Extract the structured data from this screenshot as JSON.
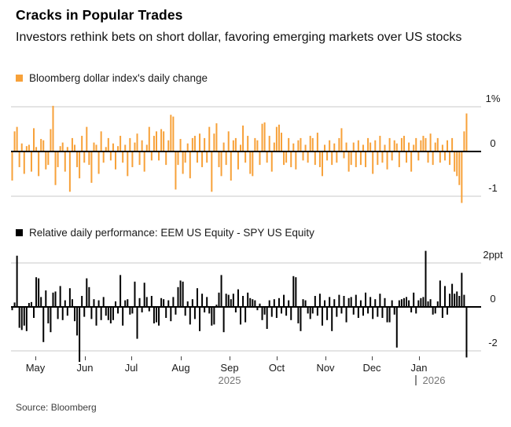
{
  "header": {
    "title": "Cracks in Popular Trades",
    "subtitle": "Investors rethink bets on short dollar, favoring emerging markets over US stocks"
  },
  "footer": {
    "source": "Source: Bloomberg"
  },
  "colors": {
    "dollar_bars": "#F7A139",
    "eem_spy_bars": "#000000",
    "gridline": "#DCDCDC",
    "zero_line": "#000000",
    "year_text": "#757575"
  },
  "axis": {
    "months": [
      {
        "label": "May",
        "x": 45
      },
      {
        "label": "Jun",
        "x": 108
      },
      {
        "label": "Jul",
        "x": 167
      },
      {
        "label": "Aug",
        "x": 230
      },
      {
        "label": "Sep",
        "x": 292
      },
      {
        "label": "Oct",
        "x": 352
      },
      {
        "label": "Nov",
        "x": 414
      },
      {
        "label": "Dec",
        "x": 473
      },
      {
        "label": "Jan",
        "x": 533
      }
    ],
    "years": [
      {
        "label": "2025",
        "x": 292,
        "divider": false
      },
      {
        "label": "2026",
        "x": 552,
        "divider": true
      }
    ]
  },
  "chart_data": [
    {
      "type": "bar",
      "name": "bloomberg-dollar-index-daily-change",
      "legend": "Bloomberg dollar index's daily change",
      "unit": "%",
      "color": "#F7A139",
      "y_ticks": [
        {
          "label": "1%",
          "value": 1
        },
        {
          "label": "0",
          "value": 0
        },
        {
          "label": "-1",
          "value": -1
        }
      ],
      "ylim": [
        -1.3,
        1.1
      ],
      "x_range": "May 2025 - Jan 2026, daily",
      "values": [
        -0.65,
        0.45,
        0.55,
        -0.35,
        0.18,
        -0.5,
        0.12,
        0.15,
        -0.45,
        0.52,
        0.1,
        -0.55,
        0.28,
        0.25,
        -0.4,
        -0.3,
        0.5,
        1.02,
        -0.75,
        -0.35,
        0.12,
        0.2,
        -0.45,
        0.1,
        -0.9,
        0.3,
        0.15,
        -0.35,
        -0.6,
        0.35,
        -0.25,
        0.55,
        -0.3,
        -0.7,
        0.2,
        0.15,
        -0.5,
        0.45,
        -0.25,
        0.1,
        0.3,
        -0.2,
        0.18,
        -0.4,
        0.12,
        0.35,
        -0.25,
        0.15,
        -0.55,
        0.3,
        -0.35,
        0.2,
        0.4,
        -0.3,
        0.25,
        -0.45,
        0.15,
        0.55,
        -0.2,
        0.35,
        0.45,
        -0.2,
        0.5,
        0.45,
        -0.3,
        0.25,
        0.82,
        0.78,
        -0.85,
        -0.3,
        0.28,
        -0.5,
        -0.25,
        0.18,
        -0.6,
        0.3,
        0.35,
        -0.25,
        0.4,
        -0.35,
        0.3,
        -0.25,
        0.55,
        -0.9,
        0.4,
        0.63,
        -0.35,
        -0.55,
        0.2,
        -0.3,
        0.45,
        -0.65,
        0.25,
        0.3,
        -0.4,
        0.15,
        0.58,
        -0.25,
        0.35,
        -0.5,
        -0.55,
        0.3,
        0.25,
        -0.3,
        0.62,
        0.65,
        -0.25,
        0.35,
        -0.45,
        0.2,
        0.55,
        0.6,
        0.42,
        -0.3,
        -0.25,
        0.3,
        -0.35,
        0.18,
        -0.4,
        0.25,
        0.3,
        -0.2,
        0.15,
        -0.25,
        0.35,
        0.3,
        -0.3,
        0.42,
        -0.35,
        -0.55,
        0.15,
        -0.2,
        0.25,
        -0.3,
        0.18,
        -0.25,
        0.3,
        0.52,
        -0.15,
        0.2,
        -0.45,
        -0.3,
        0.2,
        -0.35,
        0.25,
        -0.3,
        0.15,
        -0.35,
        0.3,
        0.2,
        -0.5,
        0.25,
        -0.3,
        0.35,
        -0.25,
        0.15,
        -0.4,
        0.3,
        -0.2,
        0.25,
        0.18,
        -0.35,
        0.3,
        0.35,
        -0.25,
        0.2,
        -0.45,
        0.15,
        0.3,
        -0.2,
        0.25,
        0.35,
        0.3,
        -0.25,
        0.4,
        -0.3,
        0.2,
        0.3,
        -0.25,
        0.15,
        -0.2,
        0.25,
        -0.3,
        0.3,
        -0.45,
        -0.55,
        -0.75,
        -1.15,
        0.45,
        0.85
      ]
    },
    {
      "type": "bar",
      "name": "relative-daily-performance-eem-minus-spy",
      "legend": "Relative daily performance: EEM US Equity - SPY US Equity",
      "unit": "ppt",
      "color": "#000000",
      "y_ticks": [
        {
          "label": "2ppt",
          "value": 2
        },
        {
          "label": "0",
          "value": 0
        },
        {
          "label": "-2",
          "value": -2
        }
      ],
      "ylim": [
        -2.6,
        2.7
      ],
      "x_range": "May 2025 - Jan 2026, daily",
      "values": [
        -0.15,
        0.2,
        2.33,
        -0.95,
        -1.05,
        -0.85,
        -1.1,
        0.18,
        0.22,
        -0.5,
        1.35,
        1.3,
        0.45,
        -1.6,
        0.75,
        -0.75,
        -1.15,
        0.65,
        0.7,
        -0.55,
        0.95,
        -0.6,
        0.3,
        -0.4,
        0.85,
        0.35,
        -0.65,
        -1.3,
        -2.5,
        0.5,
        -0.45,
        1.3,
        0.9,
        -0.55,
        0.35,
        -0.85,
        0.3,
        -0.6,
        0.45,
        -0.4,
        -0.6,
        -0.75,
        -0.6,
        0.25,
        -0.3,
        1.45,
        -0.85,
        0.3,
        0.35,
        -0.35,
        -0.3,
        1.15,
        -1.45,
        0.4,
        -0.25,
        1.1,
        0.45,
        -0.2,
        0.5,
        -0.75,
        -0.7,
        -0.85,
        0.4,
        0.35,
        -0.5,
        0.3,
        -0.65,
        0.45,
        -0.35,
        0.9,
        1.2,
        1.15,
        -0.4,
        0.25,
        -0.8,
        0.35,
        -0.55,
        0.85,
        -1.1,
        0.6,
        -0.25,
        0.45,
        -0.3,
        -0.85,
        -0.8,
        0.1,
        0.65,
        1.45,
        -1.15,
        0.6,
        0.55,
        0.35,
        0.6,
        -0.25,
        0.8,
        -0.8,
        0.5,
        -0.7,
        0.65,
        0.4,
        0.35,
        0.3,
        -0.15,
        0.15,
        -0.6,
        -0.35,
        -1.0,
        0.3,
        -0.45,
        0.35,
        -0.5,
        0.4,
        -0.3,
        0.55,
        -0.4,
        0.3,
        -0.6,
        1.4,
        1.35,
        -0.75,
        -1.1,
        0.35,
        0.3,
        -0.3,
        -0.55,
        -0.3,
        0.5,
        -0.4,
        0.6,
        -0.85,
        0.3,
        -0.6,
        0.45,
        -1.1,
        0.35,
        -0.45,
        0.55,
        -0.3,
        0.5,
        -0.7,
        0.4,
        0.45,
        -0.35,
        0.55,
        -0.5,
        0.3,
        -0.4,
        0.65,
        -0.3,
        0.45,
        -0.55,
        0.35,
        -0.45,
        0.6,
        -0.5,
        0.4,
        -0.7,
        -0.7,
        0.3,
        -0.35,
        -1.85,
        0.3,
        0.35,
        0.4,
        0.45,
        0.3,
        -0.25,
        0.65,
        -0.3,
        0.3,
        0.4,
        0.45,
        2.55,
        0.25,
        0.35,
        -0.35,
        -0.3,
        0.25,
        1.2,
        -0.5,
        0.95,
        -0.35,
        0.6,
        1.05,
        0.6,
        0.7,
        0.5,
        1.55,
        0.55,
        -2.3
      ]
    }
  ]
}
